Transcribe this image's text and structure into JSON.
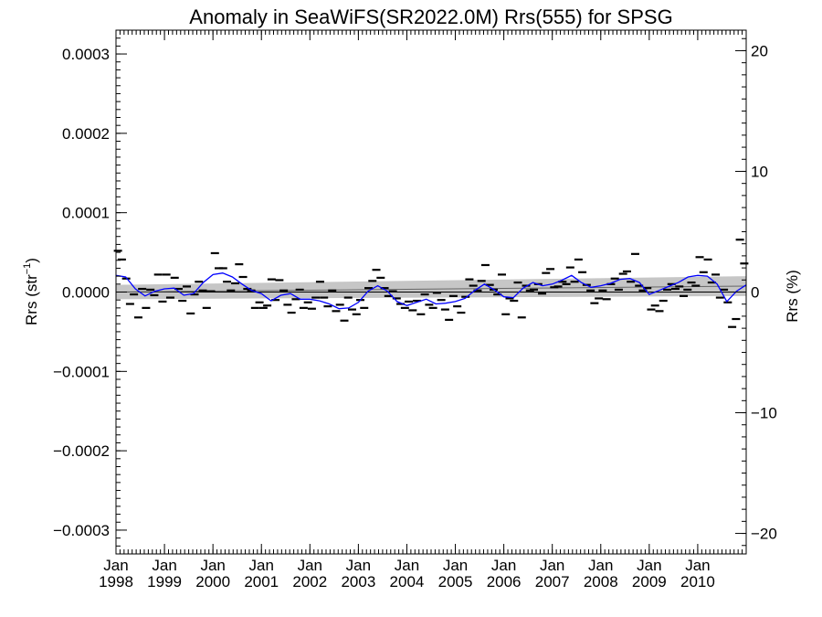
{
  "chart_data": {
    "type": "scatter",
    "title": "Anomaly in SeaWiFS(SR2022.0M) Rrs(555) for SPSG",
    "ylabel_left": {
      "base": "Rrs (str",
      "sup": "−1",
      "close": ")"
    },
    "ylabel_right": "Rrs (%)",
    "xlim": [
      1998.0,
      2011.0
    ],
    "ylim": [
      -0.00033,
      0.00033
    ],
    "ylim_right": [
      -21.7,
      21.7
    ],
    "y_ticks": [
      {
        "value": 0.0003,
        "label": "0.0003"
      },
      {
        "value": 0.0002,
        "label": "0.0002"
      },
      {
        "value": 0.0001,
        "label": "0.0001"
      },
      {
        "value": 0.0,
        "label": "0.0000"
      },
      {
        "value": -0.0001,
        "label": "−0.0001"
      },
      {
        "value": -0.0002,
        "label": "−0.0002"
      },
      {
        "value": -0.0003,
        "label": "−0.0003"
      }
    ],
    "y_ticks_right": [
      {
        "value": 20,
        "label": "20"
      },
      {
        "value": 10,
        "label": "10"
      },
      {
        "value": 0,
        "label": "0"
      },
      {
        "value": -10,
        "label": "−10"
      },
      {
        "value": -20,
        "label": "−20"
      }
    ],
    "x_ticks": [
      {
        "value": 1998,
        "month": "Jan",
        "year": "1998"
      },
      {
        "value": 1999,
        "month": "Jan",
        "year": "1999"
      },
      {
        "value": 2000,
        "month": "Jan",
        "year": "2000"
      },
      {
        "value": 2001,
        "month": "Jan",
        "year": "2001"
      },
      {
        "value": 2002,
        "month": "Jan",
        "year": "2002"
      },
      {
        "value": 2003,
        "month": "Jan",
        "year": "2003"
      },
      {
        "value": 2004,
        "month": "Jan",
        "year": "2004"
      },
      {
        "value": 2005,
        "month": "Jan",
        "year": "2005"
      },
      {
        "value": 2006,
        "month": "Jan",
        "year": "2006"
      },
      {
        "value": 2007,
        "month": "Jan",
        "year": "2007"
      },
      {
        "value": 2008,
        "month": "Jan",
        "year": "2008"
      },
      {
        "value": 2009,
        "month": "Jan",
        "year": "2009"
      },
      {
        "value": 2010,
        "month": "Jan",
        "year": "2010"
      }
    ],
    "zero_line": 0.0,
    "trend_band": {
      "x": [
        1998.0,
        2011.0
      ],
      "upper": [
        9e-06,
        2e-05
      ],
      "lower": [
        -9e-06,
        -5e-06
      ],
      "center": [
        0.0,
        7.5e-06
      ]
    },
    "smoothed_series": {
      "color": "#0000ff",
      "x": [
        1998.0,
        1998.2,
        1998.4,
        1998.6,
        1998.8,
        1999.0,
        1999.2,
        1999.4,
        1999.6,
        1999.8,
        2000.0,
        2000.2,
        2000.4,
        2000.6,
        2000.8,
        2001.0,
        2001.2,
        2001.4,
        2001.6,
        2001.8,
        2002.0,
        2002.2,
        2002.4,
        2002.6,
        2002.8,
        2003.0,
        2003.2,
        2003.4,
        2003.6,
        2003.8,
        2004.0,
        2004.2,
        2004.4,
        2004.6,
        2004.8,
        2005.0,
        2005.2,
        2005.4,
        2005.6,
        2005.8,
        2006.0,
        2006.2,
        2006.4,
        2006.6,
        2006.8,
        2007.0,
        2007.2,
        2007.4,
        2007.6,
        2007.8,
        2008.0,
        2008.2,
        2008.4,
        2008.6,
        2008.8,
        2009.0,
        2009.2,
        2009.4,
        2009.6,
        2009.8,
        2010.0,
        2010.2,
        2010.4,
        2010.6,
        2010.8,
        2011.0
      ],
      "y": [
        2.1e-05,
        1.9e-05,
        4e-06,
        -5e-06,
        1e-06,
        4e-06,
        5e-06,
        -4e-06,
        -2e-06,
        1.2e-05,
        2.2e-05,
        2.4e-05,
        1.9e-05,
        1e-05,
        2e-06,
        -2e-06,
        -1.1e-05,
        -4e-06,
        -2e-06,
        -9e-06,
        -9e-06,
        -1.1e-05,
        -1.5e-05,
        -2.1e-05,
        -2e-05,
        -1.3e-05,
        1e-06,
        8e-06,
        1e-06,
        -1.2e-05,
        -1.7e-05,
        -1.3e-05,
        -9e-06,
        -1.5e-05,
        -1.4e-05,
        -1.2e-05,
        -8e-06,
        2e-06,
        1e-05,
        3e-06,
        -6e-06,
        -7e-06,
        5e-06,
        1.2e-05,
        8e-06,
        1e-05,
        1.5e-05,
        2.1e-05,
        1.2e-05,
        6e-06,
        8e-06,
        1.1e-05,
        1.6e-05,
        1.7e-05,
        1.2e-05,
        -3e-06,
        2e-06,
        7e-06,
        1.2e-05,
        1.9e-05,
        2.1e-05,
        2e-05,
        1e-05,
        -1.2e-05,
        1e-06,
        9e-06
      ]
    },
    "monthly_anomalies": {
      "color": "#000000",
      "x": [
        1998.04,
        1998.12,
        1998.21,
        1998.29,
        1998.37,
        1998.46,
        1998.54,
        1998.62,
        1998.71,
        1998.79,
        1998.87,
        1998.96,
        1999.04,
        1999.12,
        1999.21,
        1999.29,
        1999.37,
        1999.46,
        1999.54,
        1999.62,
        1999.71,
        1999.79,
        1999.87,
        1999.96,
        2000.04,
        2000.12,
        2000.21,
        2000.29,
        2000.37,
        2000.46,
        2000.54,
        2000.62,
        2000.71,
        2000.79,
        2000.87,
        2000.96,
        2001.04,
        2001.12,
        2001.21,
        2001.29,
        2001.37,
        2001.46,
        2001.54,
        2001.62,
        2001.71,
        2001.79,
        2001.87,
        2001.96,
        2002.04,
        2002.12,
        2002.21,
        2002.29,
        2002.37,
        2002.46,
        2002.54,
        2002.62,
        2002.71,
        2002.79,
        2002.87,
        2002.96,
        2003.04,
        2003.12,
        2003.21,
        2003.29,
        2003.37,
        2003.46,
        2003.54,
        2003.62,
        2003.71,
        2003.79,
        2003.87,
        2003.96,
        2004.04,
        2004.12,
        2004.21,
        2004.29,
        2004.37,
        2004.46,
        2004.54,
        2004.62,
        2004.71,
        2004.79,
        2004.87,
        2004.96,
        2005.04,
        2005.12,
        2005.21,
        2005.29,
        2005.37,
        2005.46,
        2005.54,
        2005.62,
        2005.71,
        2005.79,
        2005.87,
        2005.96,
        2006.04,
        2006.12,
        2006.21,
        2006.29,
        2006.37,
        2006.46,
        2006.54,
        2006.62,
        2006.71,
        2006.79,
        2006.87,
        2006.96,
        2007.04,
        2007.12,
        2007.21,
        2007.29,
        2007.37,
        2007.46,
        2007.54,
        2007.62,
        2007.71,
        2007.79,
        2007.87,
        2007.96,
        2008.04,
        2008.12,
        2008.21,
        2008.29,
        2008.37,
        2008.46,
        2008.54,
        2008.62,
        2008.71,
        2008.79,
        2008.87,
        2008.96,
        2009.04,
        2009.12,
        2009.21,
        2009.29,
        2009.37,
        2009.46,
        2009.54,
        2009.62,
        2009.71,
        2009.79,
        2009.87,
        2009.96,
        2010.04,
        2010.12,
        2010.21,
        2010.29,
        2010.37,
        2010.46,
        2010.54,
        2010.62,
        2010.71,
        2010.79,
        2010.87,
        2010.96
      ],
      "y": [
        5.2e-05,
        4.1e-05,
        1.7e-05,
        -1.5e-05,
        -3e-06,
        -3.2e-05,
        4e-06,
        -2e-05,
        3e-06,
        -4e-06,
        2.2e-05,
        -1.2e-05,
        2.2e-05,
        -7e-06,
        1.8e-05,
        4e-06,
        -1.1e-05,
        7e-06,
        -2.7e-05,
        -3e-06,
        1.3e-05,
        2e-06,
        -2e-05,
        1e-06,
        4.9e-05,
        3e-05,
        3e-05,
        1.3e-05,
        2e-06,
        1.1e-05,
        3.5e-05,
        1.9e-05,
        4e-06,
        2e-06,
        -2e-05,
        -1.3e-05,
        -2e-05,
        -1.7e-05,
        1.6e-05,
        -1e-05,
        1.5e-05,
        2e-06,
        -1.6e-05,
        -2.6e-05,
        -9e-06,
        3e-06,
        -2e-05,
        -1.3e-05,
        -2.1e-05,
        -7e-06,
        1.3e-05,
        -7e-06,
        -1.8e-05,
        2e-06,
        -2.4e-05,
        -1.6e-05,
        -3.6e-05,
        -7e-06,
        -2.2e-05,
        -2.8e-05,
        -1e-05,
        -2e-05,
        5e-06,
        1.4e-05,
        2.8e-05,
        1.8e-05,
        5e-06,
        -5e-06,
        1e-06,
        -8e-06,
        -1.5e-05,
        -2e-05,
        -1.2e-05,
        -2.3e-05,
        -1.1e-05,
        -2.8e-05,
        -3e-06,
        -1.6e-05,
        -2e-05,
        -1e-06,
        -1e-05,
        -2.2e-05,
        -3.5e-05,
        -5e-06,
        -1.8e-05,
        -2.6e-05,
        -6e-06,
        1.6e-05,
        8e-06,
        2e-06,
        1.4e-05,
        3.4e-05,
        9e-06,
        3e-06,
        -3e-06,
        2.2e-05,
        -2.8e-05,
        -8e-06,
        -1.1e-05,
        1.2e-05,
        -3.2e-05,
        8e-06,
        2e-06,
        3e-06,
        1e-05,
        -2e-06,
        2.4e-05,
        2.9e-05,
        6e-06,
        7e-06,
        1.3e-05,
        1e-05,
        3.1e-05,
        1.3e-05,
        4.1e-05,
        2.5e-05,
        9e-06,
        2e-06,
        -1.4e-05,
        -8e-06,
        2e-06,
        -9e-06,
        1e-05,
        1.7e-05,
        3e-06,
        2.3e-05,
        2.6e-05,
        1.3e-05,
        4.8e-05,
        8e-06,
        2e-06,
        5e-06,
        -2.2e-05,
        -1.7e-05,
        -2.4e-05,
        -1.1e-05,
        3e-06,
        1e-05,
        4e-06,
        7e-06,
        -5e-06,
        3e-06,
        1.2e-05,
        8e-06,
        4.4e-05,
        2.5e-05,
        4.1e-05,
        1.2e-05,
        2.2e-05,
        -7e-06,
        3e-06,
        -1.3e-05,
        -4.4e-05,
        -3.4e-05,
        6.6e-05,
        3.6e-05
      ]
    }
  }
}
